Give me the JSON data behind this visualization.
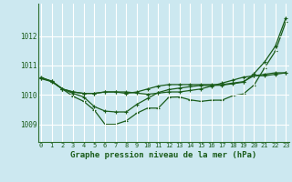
{
  "xlabel": "Graphe pression niveau de la mer (hPa)",
  "bg_color": "#cce8f0",
  "grid_color": "#ffffff",
  "line_color": "#1a5c1a",
  "x_ticks": [
    0,
    1,
    2,
    3,
    4,
    5,
    6,
    7,
    8,
    9,
    10,
    11,
    12,
    13,
    14,
    15,
    16,
    17,
    18,
    19,
    20,
    21,
    22,
    23
  ],
  "y_ticks": [
    1009,
    1010,
    1011,
    1012
  ],
  "ylim": [
    1008.4,
    1013.1
  ],
  "xlim": [
    -0.3,
    23.3
  ],
  "line1_x": [
    0,
    1,
    2,
    3,
    4,
    5,
    6,
    7,
    8,
    9,
    10,
    11,
    12,
    13,
    14,
    15,
    16,
    17,
    18,
    19,
    20,
    21,
    22,
    23
  ],
  "line1_y": [
    1010.55,
    1010.45,
    1010.2,
    1010.1,
    1010.05,
    1010.05,
    1010.1,
    1010.1,
    1010.05,
    1010.1,
    1010.2,
    1010.3,
    1010.35,
    1010.35,
    1010.35,
    1010.35,
    1010.35,
    1010.35,
    1010.4,
    1010.45,
    1010.65,
    1010.7,
    1010.75,
    1010.75
  ],
  "line2_x": [
    0,
    1,
    2,
    3,
    4,
    5,
    6,
    7,
    8,
    9,
    10,
    11,
    12,
    13,
    14,
    15,
    16,
    17,
    18,
    19,
    20,
    21,
    22,
    23
  ],
  "line2_y": [
    1010.58,
    1010.47,
    1010.2,
    1010.05,
    1009.93,
    1009.6,
    1009.45,
    1009.42,
    1009.42,
    1009.68,
    1009.88,
    1010.08,
    1010.18,
    1010.23,
    1010.28,
    1010.32,
    1010.32,
    1010.33,
    1010.38,
    1010.43,
    1010.72,
    1011.12,
    1011.65,
    1012.62
  ],
  "line3_x": [
    0,
    1,
    2,
    3,
    4,
    5,
    6,
    7,
    8,
    9,
    10,
    11,
    12,
    13,
    14,
    15,
    16,
    17,
    18,
    19,
    20,
    21,
    22,
    23
  ],
  "line3_y": [
    1010.6,
    1010.45,
    1010.2,
    1009.95,
    1009.78,
    1009.48,
    1009.0,
    1009.0,
    1009.12,
    1009.38,
    1009.55,
    1009.55,
    1009.92,
    1009.93,
    1009.83,
    1009.78,
    1009.82,
    1009.82,
    1009.97,
    1010.03,
    1010.33,
    1010.92,
    1011.48,
    1012.48
  ],
  "line4_x": [
    0,
    1,
    2,
    3,
    4,
    5,
    6,
    7,
    8,
    9,
    10,
    11,
    12,
    13,
    14,
    15,
    16,
    17,
    18,
    19,
    20,
    21,
    22,
    23
  ],
  "line4_y": [
    1010.57,
    1010.46,
    1010.2,
    1010.1,
    1010.05,
    1010.05,
    1010.1,
    1010.1,
    1010.1,
    1010.06,
    1010.02,
    1010.06,
    1010.1,
    1010.1,
    1010.15,
    1010.2,
    1010.3,
    1010.4,
    1010.5,
    1010.6,
    1010.65,
    1010.65,
    1010.7,
    1010.75
  ],
  "spine_color": "#2d6e2d",
  "xlabel_fontsize": 6.5,
  "tick_fontsize": 5.0,
  "ytick_fontsize": 5.5
}
